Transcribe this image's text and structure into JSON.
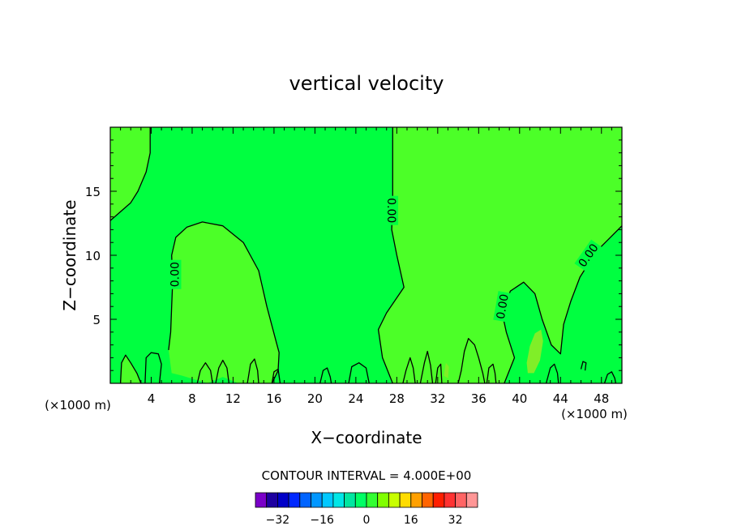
{
  "chart_data": {
    "type": "heatmap",
    "title": "vertical velocity",
    "xlabel": "X−coordinate",
    "ylabel": "Z−coordinate",
    "x_unit": "(×1000 m)",
    "y_unit": "(×1000 m)",
    "xlim": [
      0,
      50
    ],
    "ylim": [
      0,
      20
    ],
    "x_ticks": [
      4,
      8,
      12,
      16,
      20,
      24,
      28,
      32,
      36,
      40,
      44,
      48
    ],
    "y_ticks": [
      5,
      10,
      15
    ],
    "contour_interval_label": "CONTOUR INTERVAL = 4.000E+00",
    "contour_label": "0.00",
    "colorbar": {
      "ticks": [
        -32,
        -16,
        0,
        16,
        32
      ],
      "tick_labels": [
        "−32",
        "−16",
        "0",
        "16",
        "32"
      ],
      "colors": [
        "#7a00c8",
        "#1e00a0",
        "#0000c8",
        "#0028ff",
        "#0064ff",
        "#0096ff",
        "#00c8ff",
        "#00e6e6",
        "#00e6a0",
        "#00ff64",
        "#32ff32",
        "#80ff00",
        "#c8ff00",
        "#ffdc00",
        "#ffa000",
        "#ff6400",
        "#ff1e00",
        "#ff3232",
        "#ff6464",
        "#ff9696"
      ]
    },
    "regions": [
      {
        "name": "upper-left positive region",
        "fill": "#4cff28",
        "level": "0 to 4",
        "boundary": [
          [
            0,
            12.7
          ],
          [
            1,
            13.4
          ],
          [
            2,
            14.1
          ],
          [
            2.7,
            15
          ],
          [
            3.5,
            16.5
          ],
          [
            3.9,
            18
          ],
          [
            3.9,
            20
          ],
          [
            0,
            20
          ]
        ]
      },
      {
        "name": "central bulge positive region",
        "fill": "#4cff28",
        "level": "0 to 4",
        "boundary": [
          [
            5.7,
            2.6
          ],
          [
            5.9,
            4
          ],
          [
            6,
            6
          ],
          [
            6.1,
            8
          ],
          [
            6,
            10
          ],
          [
            6.4,
            11.4
          ],
          [
            7.5,
            12.2
          ],
          [
            9,
            12.6
          ],
          [
            11,
            12.3
          ],
          [
            13,
            11
          ],
          [
            14.5,
            8.8
          ],
          [
            15.3,
            6
          ],
          [
            16.2,
            3.3
          ],
          [
            16.5,
            2.4
          ],
          [
            16.4,
            1
          ],
          [
            15.8,
            0
          ],
          [
            12.5,
            0
          ],
          [
            11,
            0.5
          ],
          [
            9.5,
            0
          ],
          [
            7,
            0.6
          ],
          [
            6,
            0.8
          ],
          [
            5.7,
            2.6
          ]
        ]
      },
      {
        "name": "right positive region",
        "fill": "#4cff28",
        "level": "0 to 4",
        "boundary": [
          [
            27.6,
            20
          ],
          [
            27.6,
            14.5
          ],
          [
            27.5,
            12
          ],
          [
            28,
            10
          ],
          [
            28.7,
            7.5
          ],
          [
            27,
            5.5
          ],
          [
            26.2,
            4.2
          ],
          [
            26.6,
            2
          ],
          [
            27.6,
            0
          ],
          [
            38.5,
            0
          ],
          [
            39.5,
            2
          ],
          [
            38.7,
            4
          ],
          [
            38.3,
            5.5
          ],
          [
            39.1,
            7.2
          ],
          [
            40.4,
            7.9
          ],
          [
            41.5,
            7
          ],
          [
            42.2,
            5
          ],
          [
            43.1,
            3
          ],
          [
            44,
            2.3
          ],
          [
            44.3,
            4.6
          ],
          [
            45,
            6.4
          ],
          [
            45.9,
            8.3
          ],
          [
            47.5,
            10.3
          ],
          [
            49,
            11.5
          ],
          [
            50,
            12.3
          ],
          [
            50,
            20
          ]
        ]
      },
      {
        "name": "bottom-left positive region",
        "fill": "#4cff28",
        "level": "0 to 4",
        "boundary": [
          [
            1,
            0
          ],
          [
            1.1,
            1.6
          ],
          [
            1.5,
            2.2
          ],
          [
            2,
            1.6
          ],
          [
            2.6,
            0.8
          ],
          [
            3,
            0
          ]
        ]
      },
      {
        "name": "strong updraft cell",
        "fill": "#80ee28",
        "level": "4 to 8",
        "boundary": [
          [
            40.8,
            0.8
          ],
          [
            40.7,
            1.6
          ],
          [
            41,
            2.9
          ],
          [
            41.5,
            3.9
          ],
          [
            42.1,
            4.2
          ],
          [
            42.3,
            3.3
          ],
          [
            42,
            1.8
          ],
          [
            41.4,
            0.8
          ]
        ]
      },
      {
        "name": "small updraft cell",
        "fill": "#80ee28",
        "level": "4 to 8",
        "boundary": [
          [
            32.6,
            0.6
          ],
          [
            32.8,
            1.6
          ],
          [
            33.1,
            1.3
          ],
          [
            33,
            0.4
          ]
        ]
      }
    ],
    "zero_contours": [
      [
        [
          0,
          12.7
        ],
        [
          1,
          13.4
        ],
        [
          2,
          14.1
        ],
        [
          2.7,
          15
        ],
        [
          3.5,
          16.5
        ],
        [
          3.9,
          18
        ],
        [
          3.9,
          20
        ]
      ],
      [
        [
          5.7,
          2.6
        ],
        [
          5.9,
          4
        ],
        [
          6,
          6
        ],
        [
          6.1,
          8
        ],
        [
          6,
          10
        ],
        [
          6.4,
          11.4
        ],
        [
          7.5,
          12.2
        ],
        [
          9,
          12.6
        ],
        [
          11,
          12.3
        ],
        [
          13,
          11
        ],
        [
          14.5,
          8.8
        ],
        [
          15.3,
          6
        ],
        [
          16.2,
          3.3
        ],
        [
          16.5,
          2.4
        ],
        [
          16.4,
          1
        ],
        [
          15.8,
          0
        ]
      ],
      [
        [
          27.6,
          20
        ],
        [
          27.6,
          14.5
        ],
        [
          27.5,
          12
        ],
        [
          28,
          10
        ],
        [
          28.7,
          7.5
        ],
        [
          27,
          5.5
        ],
        [
          26.2,
          4.2
        ],
        [
          26.6,
          2
        ],
        [
          27.6,
          0
        ]
      ],
      [
        [
          38.5,
          0
        ],
        [
          39.5,
          2
        ],
        [
          38.7,
          4
        ],
        [
          38.3,
          5.5
        ],
        [
          39.1,
          7.2
        ],
        [
          40.4,
          7.9
        ],
        [
          41.5,
          7
        ],
        [
          42.2,
          5
        ],
        [
          43.1,
          3
        ],
        [
          44,
          2.3
        ],
        [
          44.3,
          4.6
        ],
        [
          45,
          6.4
        ],
        [
          45.9,
          8.3
        ],
        [
          47.5,
          10.3
        ],
        [
          49,
          11.5
        ],
        [
          50,
          12.3
        ]
      ],
      [
        [
          1,
          0
        ],
        [
          1.1,
          1.6
        ],
        [
          1.5,
          2.2
        ],
        [
          2,
          1.6
        ],
        [
          2.6,
          0.8
        ],
        [
          3,
          0
        ]
      ],
      [
        [
          3.4,
          0
        ],
        [
          3.5,
          2
        ],
        [
          4,
          2.4
        ],
        [
          4.7,
          2.3
        ],
        [
          5,
          1.5
        ],
        [
          4.8,
          0
        ]
      ],
      [
        [
          8.5,
          0
        ],
        [
          8.8,
          1
        ],
        [
          9.3,
          1.6
        ],
        [
          9.8,
          1
        ],
        [
          10,
          0
        ]
      ],
      [
        [
          10.3,
          0
        ],
        [
          10.6,
          1.2
        ],
        [
          11,
          1.8
        ],
        [
          11.4,
          1.2
        ],
        [
          11.6,
          0
        ]
      ],
      [
        [
          13.4,
          0
        ],
        [
          13.7,
          1.5
        ],
        [
          14.1,
          1.9
        ],
        [
          14.4,
          1
        ],
        [
          14.5,
          0
        ]
      ],
      [
        [
          15.8,
          0
        ],
        [
          16,
          0.9
        ],
        [
          16.4,
          1.1
        ],
        [
          16.6,
          0
        ]
      ],
      [
        [
          20.5,
          0
        ],
        [
          20.8,
          1
        ],
        [
          21.2,
          1.2
        ],
        [
          21.5,
          0.5
        ],
        [
          21.6,
          0
        ]
      ],
      [
        [
          23.3,
          0
        ],
        [
          23.6,
          1.3
        ],
        [
          24.3,
          1.6
        ],
        [
          25,
          1.2
        ],
        [
          25.3,
          0
        ]
      ],
      [
        [
          28.6,
          0
        ],
        [
          28.9,
          1
        ],
        [
          29.3,
          2
        ],
        [
          29.6,
          1.2
        ],
        [
          29.8,
          0
        ]
      ],
      [
        [
          30.3,
          0
        ],
        [
          30.7,
          1.6
        ],
        [
          31,
          2.5
        ],
        [
          31.3,
          1.4
        ],
        [
          31.5,
          0
        ]
      ],
      [
        [
          31.8,
          0
        ],
        [
          32,
          1.2
        ],
        [
          32.3,
          1.5
        ],
        [
          32.4,
          0
        ]
      ],
      [
        [
          34,
          0
        ],
        [
          34.3,
          1
        ],
        [
          34.6,
          2.5
        ],
        [
          35,
          3.5
        ],
        [
          35.6,
          3
        ],
        [
          36,
          2
        ],
        [
          36.4,
          0.8
        ],
        [
          36.6,
          0
        ]
      ],
      [
        [
          36.8,
          0
        ],
        [
          37,
          1.2
        ],
        [
          37.4,
          1.5
        ],
        [
          37.6,
          0.8
        ],
        [
          37.7,
          0
        ]
      ],
      [
        [
          42.6,
          0
        ],
        [
          43,
          1.2
        ],
        [
          43.4,
          1.5
        ],
        [
          43.7,
          0.8
        ],
        [
          43.8,
          0
        ]
      ],
      [
        [
          46,
          1.1
        ],
        [
          46.2,
          1.7
        ],
        [
          46.5,
          1.6
        ],
        [
          46.4,
          1.0
        ]
      ],
      [
        [
          48.3,
          0
        ],
        [
          48.6,
          0.7
        ],
        [
          49,
          0.9
        ],
        [
          49.3,
          0.4
        ],
        [
          49.4,
          0
        ]
      ]
    ],
    "contour_labels_at": [
      {
        "x": 6.3,
        "y": 8.5,
        "angle": -90
      },
      {
        "x": 27.5,
        "y": 13.5,
        "angle": 90
      },
      {
        "x": 38.3,
        "y": 6,
        "angle": -80
      },
      {
        "x": 46.7,
        "y": 10,
        "angle": -55
      }
    ],
    "background_fill": "#00ff40",
    "grid": false
  }
}
